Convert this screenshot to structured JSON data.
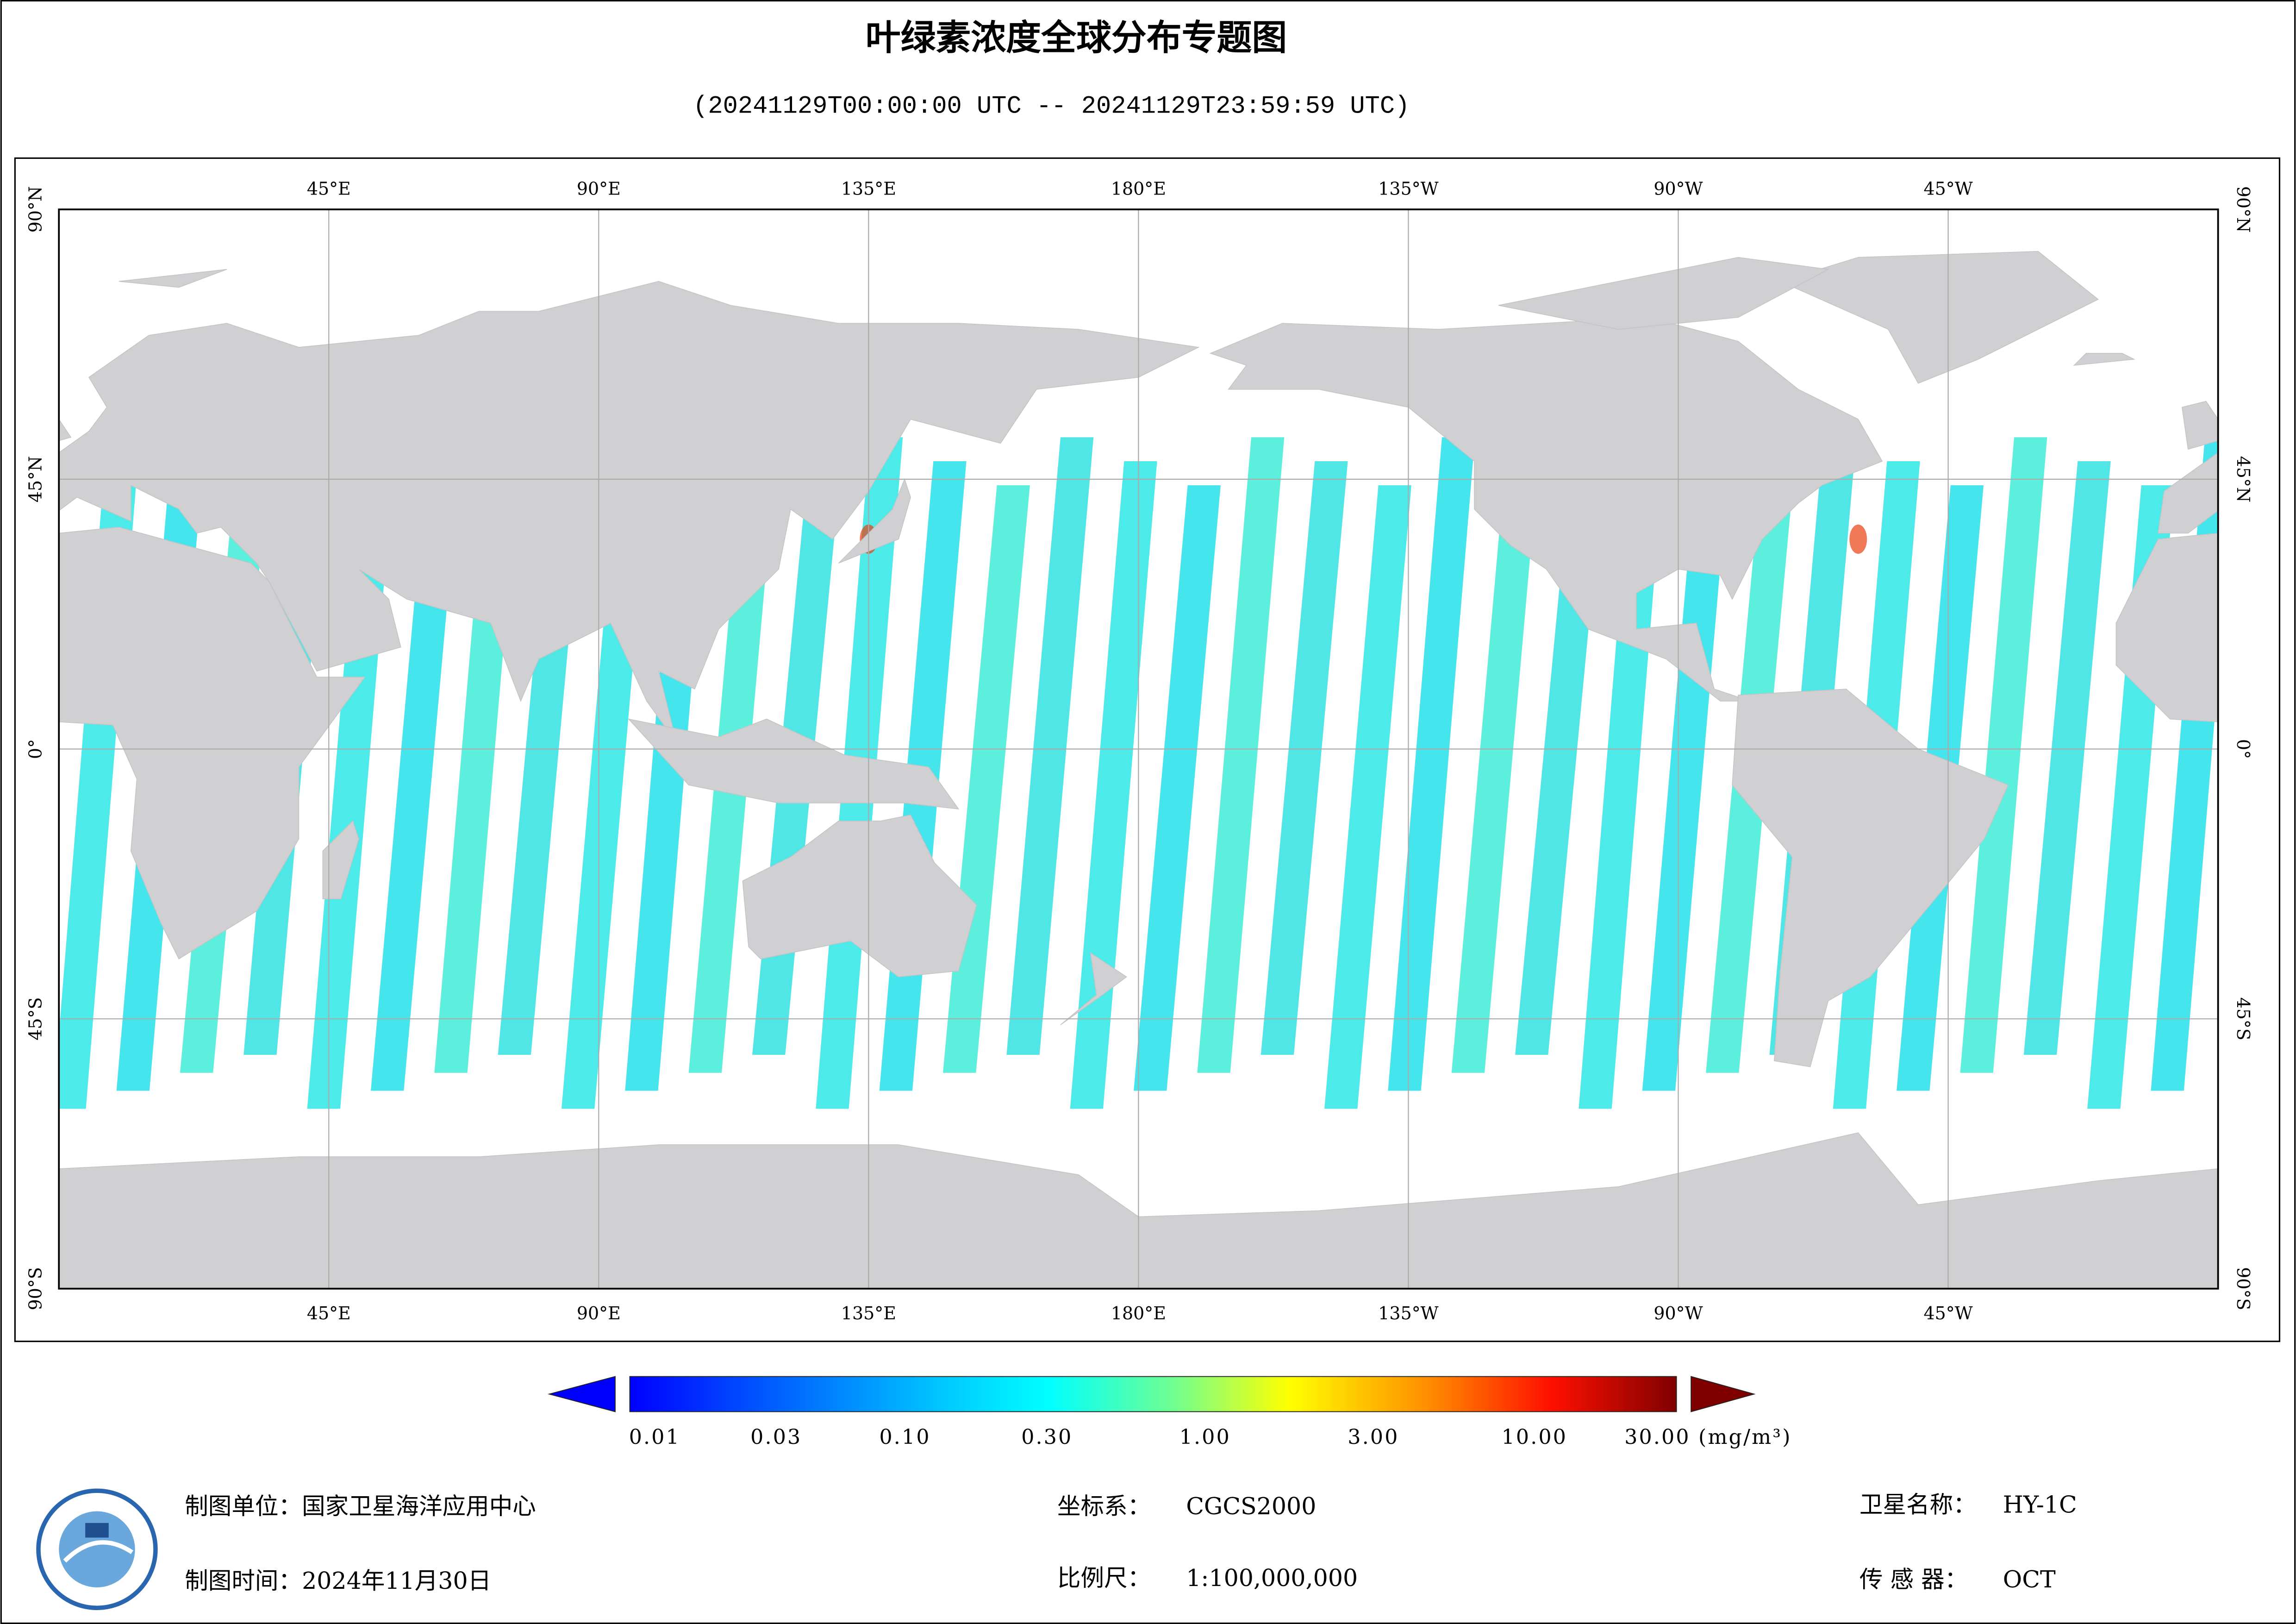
{
  "title": "叶绿素浓度全球分布专题图",
  "subtitle": "(20241129T00:00:00 UTC -- 20241129T23:59:59 UTC)",
  "map": {
    "lon_labels": [
      "45°E",
      "90°E",
      "135°E",
      "180°E",
      "135°W",
      "90°W",
      "45°W"
    ],
    "lat_labels": [
      "90°N",
      "45°N",
      "0°",
      "45°S",
      "90°S"
    ]
  },
  "colorbar": {
    "labels": [
      "0.01",
      "0.03",
      "0.10",
      "0.30",
      "1.00",
      "3.00",
      "10.00",
      "30.00"
    ],
    "unit": "(mg/m³)"
  },
  "footer": {
    "unit": "制图单位：国家卫星海洋应用中心",
    "date": "制图时间：2024年11月30日",
    "crs_label": "坐标系：",
    "crs": "CGCS2000",
    "scale_label": "比例尺：",
    "scale": "1:100,000,000",
    "satellite_label": "卫星名称：",
    "satellite": "HY-1C",
    "sensor_label": "传 感 器：",
    "sensor": "OCT"
  }
}
